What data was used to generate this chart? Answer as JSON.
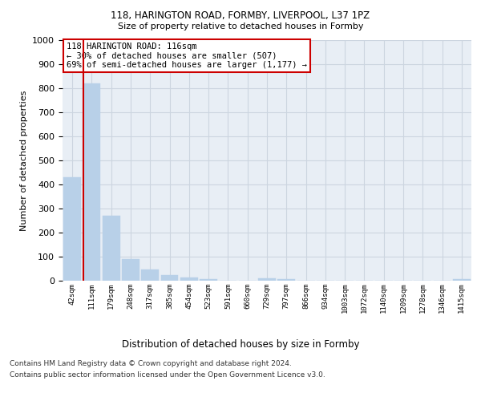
{
  "title1": "118, HARINGTON ROAD, FORMBY, LIVERPOOL, L37 1PZ",
  "title2": "Size of property relative to detached houses in Formby",
  "xlabel": "Distribution of detached houses by size in Formby",
  "ylabel": "Number of detached properties",
  "categories": [
    "42sqm",
    "111sqm",
    "179sqm",
    "248sqm",
    "317sqm",
    "385sqm",
    "454sqm",
    "523sqm",
    "591sqm",
    "660sqm",
    "729sqm",
    "797sqm",
    "866sqm",
    "934sqm",
    "1003sqm",
    "1072sqm",
    "1140sqm",
    "1209sqm",
    "1278sqm",
    "1346sqm",
    "1415sqm"
  ],
  "values": [
    430,
    820,
    270,
    90,
    47,
    22,
    12,
    7,
    0,
    0,
    9,
    8,
    0,
    0,
    0,
    0,
    0,
    0,
    0,
    0,
    8
  ],
  "bar_color": "#b8d0e8",
  "bar_edgecolor": "#b8d0e8",
  "vline_color": "#cc0000",
  "annotation_text": "118 HARINGTON ROAD: 116sqm\n← 30% of detached houses are smaller (507)\n69% of semi-detached houses are larger (1,177) →",
  "annotation_box_edgecolor": "#cc0000",
  "annotation_box_facecolor": "#ffffff",
  "ylim": [
    0,
    1000
  ],
  "yticks": [
    0,
    100,
    200,
    300,
    400,
    500,
    600,
    700,
    800,
    900,
    1000
  ],
  "grid_color": "#ccd5e0",
  "background_color": "#e8eef5",
  "footer1": "Contains HM Land Registry data © Crown copyright and database right 2024.",
  "footer2": "Contains public sector information licensed under the Open Government Licence v3.0."
}
